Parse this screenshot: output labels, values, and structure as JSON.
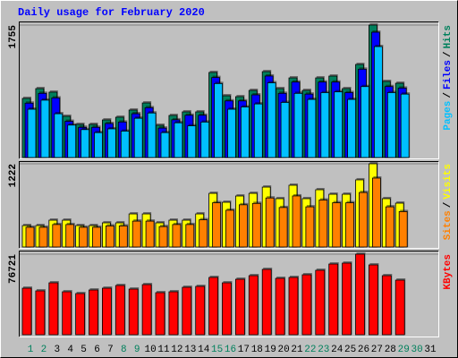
{
  "chart_data": [
    {
      "type": "bar",
      "title": "Daily usage for February 2020",
      "legend_separator": "/",
      "ylim": [
        0,
        1755
      ],
      "yticks": [
        1755
      ],
      "series": [
        {
          "name": "Hits",
          "color": "#00805C",
          "values": [
            783,
            913,
            866,
            546,
            439,
            439,
            498,
            534,
            629,
            723,
            427,
            557,
            605,
            605,
            1127,
            818,
            806,
            889,
            1138,
            913,
            1055,
            889,
            1055,
            1079,
            913,
            1233,
            1755,
            1008,
            984,
            null,
            null
          ]
        },
        {
          "name": "Files",
          "color": "#0000FF",
          "values": [
            720,
            850,
            790,
            480,
            400,
            400,
            450,
            470,
            580,
            660,
            390,
            500,
            560,
            560,
            1060,
            750,
            750,
            830,
            1080,
            850,
            1000,
            840,
            1000,
            1000,
            860,
            1170,
            1660,
            940,
            920,
            null,
            null
          ]
        },
        {
          "name": "Pages",
          "color": "#00C0FF",
          "values": [
            640,
            760,
            580,
            430,
            370,
            330,
            380,
            350,
            520,
            590,
            330,
            460,
            420,
            470,
            980,
            640,
            670,
            710,
            990,
            730,
            850,
            770,
            860,
            870,
            770,
            940,
            1470,
            860,
            840,
            null,
            null
          ]
        }
      ]
    },
    {
      "type": "bar",
      "legend_separator": "/",
      "ylim": [
        0,
        1222
      ],
      "yticks": [
        1222
      ],
      "series": [
        {
          "name": "Visits",
          "color": "#FFFF00",
          "values": [
            315,
            315,
            394,
            394,
            315,
            315,
            355,
            355,
            486,
            486,
            355,
            394,
            394,
            486,
            788,
            657,
            749,
            788,
            880,
            710,
            907,
            710,
            841,
            775,
            775,
            986,
            1222,
            710,
            644,
            null,
            null
          ]
        },
        {
          "name": "Sites",
          "color": "#FF8000",
          "values": [
            290,
            290,
            330,
            330,
            290,
            290,
            310,
            310,
            380,
            380,
            300,
            330,
            330,
            400,
            650,
            540,
            620,
            640,
            720,
            580,
            750,
            590,
            690,
            650,
            650,
            800,
            1012,
            590,
            520,
            null,
            null
          ]
        }
      ]
    },
    {
      "type": "bar",
      "ylim": [
        0,
        76721
      ],
      "yticks": [
        76721
      ],
      "categories": [
        "1",
        "2",
        "3",
        "4",
        "5",
        "6",
        "7",
        "8",
        "9",
        "10",
        "11",
        "12",
        "13",
        "14",
        "15",
        "16",
        "17",
        "18",
        "19",
        "20",
        "21",
        "22",
        "23",
        "24",
        "25",
        "26",
        "27",
        "28",
        "29",
        "30",
        "31"
      ],
      "label_colors": [
        "#00805C",
        "#00805C",
        "#000000",
        "#000000",
        "#000000",
        "#000000",
        "#000000",
        "#00805C",
        "#00805C",
        "#000000",
        "#000000",
        "#000000",
        "#000000",
        "#000000",
        "#00805C",
        "#00805C",
        "#000000",
        "#000000",
        "#000000",
        "#000000",
        "#000000",
        "#00805C",
        "#00805C",
        "#000000",
        "#000000",
        "#000000",
        "#000000",
        "#000000",
        "#00805C",
        "#00805C",
        "#000000"
      ],
      "series": [
        {
          "name": "KBytes",
          "color": "#FF0000",
          "values": [
            44330,
            41770,
            49440,
            40920,
            39210,
            42620,
            44330,
            46890,
            43480,
            47740,
            40070,
            40920,
            45180,
            46030,
            54560,
            49440,
            52850,
            56260,
            62230,
            53710,
            54560,
            57120,
            61380,
            67350,
            68200,
            76721,
            66500,
            56260,
            52000,
            null,
            null
          ]
        }
      ]
    }
  ]
}
